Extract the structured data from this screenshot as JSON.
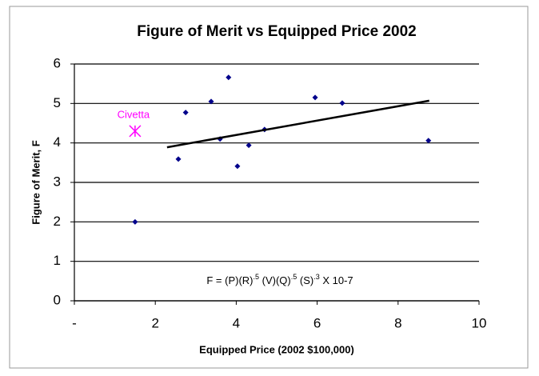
{
  "chart_data": {
    "type": "scatter",
    "title": "Figure of Merit vs Equipped Price 2002",
    "xlabel": "Equipped Price (2002 $100,000)",
    "ylabel": "Figure of Merit, F",
    "xlim": [
      0,
      10
    ],
    "ylim": [
      0,
      6
    ],
    "xticks": [
      {
        "value": 0,
        "label": "-"
      },
      2,
      4,
      6,
      8,
      10
    ],
    "yticks": [
      0,
      1,
      2,
      3,
      4,
      5,
      6
    ],
    "grid": true,
    "color": "#00008b",
    "x": [
      1.5,
      2.57,
      2.75,
      3.38,
      3.6,
      3.81,
      4.03,
      4.31,
      4.7,
      5.95,
      6.62,
      8.75
    ],
    "values": [
      2.0,
      3.59,
      4.77,
      5.05,
      4.1,
      5.66,
      3.41,
      3.94,
      4.34,
      5.15,
      5.01,
      4.06
    ],
    "trendline": {
      "x": [
        2.29,
        8.77
      ],
      "y": [
        3.89,
        5.07
      ],
      "color": "#000000"
    },
    "annotations": [
      {
        "text": "Civetta",
        "x": 1.5,
        "y": 4.3,
        "color": "#ff00ff"
      }
    ],
    "formula": [
      "F = (P)(R)",
      ".5",
      " (V)(Q)",
      ".5",
      " (S)",
      ".3",
      " X 10-7"
    ]
  }
}
